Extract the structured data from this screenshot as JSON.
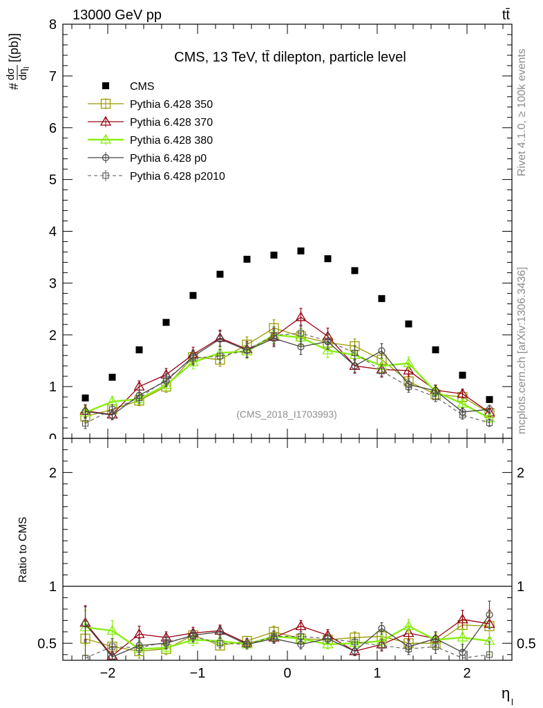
{
  "header": {
    "left": "13000 GeV pp",
    "right": "tt̄"
  },
  "title": "CMS, 13 TeV, tt̄ dilepton, particle level",
  "ylabel_main": "dσ/dη_l [(pb)]",
  "ylabel_main_hash": "#",
  "ylabel_main_num": "dσ",
  "ylabel_main_den": "dη",
  "ylabel_main_sub": "l",
  "ylabel_main_unit": "[(pb)]",
  "ylabel_ratio": "Ratio to CMS",
  "xlabel": "η",
  "xlabel_sub": "l",
  "analysis_id": "(CMS_2018_I1703993)",
  "side_text_top": "Rivet 4.1.0, ≥ 100k events",
  "side_text_bottom": "mcplots.cern.ch [arXiv:1306.3436]",
  "colors": {
    "data": "#000000",
    "p350": "#999900",
    "p370": "#990011",
    "p380": "#88ee11",
    "p0": "#444444",
    "p2010": "#555555"
  },
  "chart_data": {
    "type": "scatter",
    "x": [
      -2.25,
      -1.95,
      -1.65,
      -1.35,
      -1.05,
      -0.75,
      -0.45,
      -0.15,
      0.15,
      0.45,
      0.75,
      1.05,
      1.35,
      1.65,
      1.95,
      2.25
    ],
    "xlim": [
      -2.5,
      2.5
    ],
    "xticks": [
      -2,
      -1,
      0,
      1,
      2
    ],
    "xtick_labels": [
      "−2",
      "−1",
      "0",
      "1",
      "2"
    ],
    "main": {
      "ylim": [
        0,
        8
      ],
      "yticks": [
        0,
        1,
        2,
        3,
        4,
        5,
        6,
        7,
        8
      ],
      "ytick_labels": [
        "0",
        "1",
        "2",
        "3",
        "4",
        "5",
        "6",
        "7",
        "8"
      ]
    },
    "ratio": {
      "ylim": [
        0.35,
        2.3
      ],
      "yticks": [
        0.5,
        1,
        2
      ],
      "ytick_labels": [
        "0.5",
        "1",
        "2"
      ]
    },
    "legend_position": "top-left",
    "series": [
      {
        "name": "CMS",
        "key": "data",
        "marker": "filled-square",
        "line": "none",
        "values": [
          0.78,
          1.18,
          1.71,
          2.24,
          2.76,
          3.17,
          3.46,
          3.54,
          3.62,
          3.47,
          3.24,
          2.7,
          2.21,
          1.71,
          1.22,
          0.75
        ]
      },
      {
        "name": "Pythia 6.428 350",
        "key": "p350",
        "marker": "open-square",
        "line": "solid",
        "values": [
          0.42,
          0.56,
          0.73,
          1.0,
          1.57,
          1.52,
          1.81,
          2.13,
          1.97,
          1.85,
          1.78,
          1.52,
          1.1,
          0.85,
          0.8,
          0.49
        ],
        "errors": [
          0.12,
          0.09,
          0.1,
          0.11,
          0.13,
          0.13,
          0.15,
          0.16,
          0.16,
          0.15,
          0.14,
          0.13,
          0.12,
          0.1,
          0.09,
          0.08
        ],
        "ratio": [
          0.54,
          0.47,
          0.43,
          0.45,
          0.57,
          0.48,
          0.52,
          0.6,
          0.54,
          0.53,
          0.55,
          0.56,
          0.5,
          0.5,
          0.66,
          0.65
        ],
        "ratio_err": [
          0.15,
          0.07,
          0.06,
          0.05,
          0.05,
          0.04,
          0.04,
          0.05,
          0.04,
          0.04,
          0.05,
          0.05,
          0.06,
          0.06,
          0.07,
          0.11
        ]
      },
      {
        "name": "Pythia 6.428 370",
        "key": "p370",
        "marker": "open-triangle",
        "line": "solid",
        "values": [
          0.53,
          0.46,
          1.0,
          1.23,
          1.62,
          1.94,
          1.72,
          1.96,
          2.34,
          1.97,
          1.4,
          1.33,
          1.31,
          0.93,
          0.86,
          0.5
        ],
        "errors": [
          0.12,
          0.09,
          0.11,
          0.12,
          0.14,
          0.15,
          0.15,
          0.16,
          0.17,
          0.16,
          0.14,
          0.13,
          0.12,
          0.1,
          0.09,
          0.08
        ],
        "ratio": [
          0.68,
          0.39,
          0.58,
          0.55,
          0.59,
          0.61,
          0.5,
          0.55,
          0.65,
          0.57,
          0.43,
          0.49,
          0.59,
          0.54,
          0.71,
          0.67
        ],
        "ratio_err": [
          0.15,
          0.08,
          0.07,
          0.05,
          0.05,
          0.05,
          0.04,
          0.05,
          0.05,
          0.05,
          0.04,
          0.05,
          0.06,
          0.06,
          0.08,
          0.12
        ]
      },
      {
        "name": "Pythia 6.428 380",
        "key": "p380",
        "marker": "open-triangle",
        "line": "solid-thick",
        "values": [
          0.5,
          0.71,
          0.76,
          1.03,
          1.47,
          1.65,
          1.68,
          2.0,
          1.95,
          1.7,
          1.61,
          1.4,
          1.45,
          0.9,
          0.67,
          0.39
        ],
        "errors": [
          0.12,
          0.1,
          0.1,
          0.11,
          0.13,
          0.14,
          0.14,
          0.16,
          0.16,
          0.14,
          0.14,
          0.13,
          0.12,
          0.1,
          0.09,
          0.08
        ],
        "ratio": [
          0.64,
          0.61,
          0.45,
          0.46,
          0.53,
          0.52,
          0.49,
          0.56,
          0.54,
          0.49,
          0.5,
          0.52,
          0.65,
          0.53,
          0.55,
          0.52
        ],
        "ratio_err": [
          0.15,
          0.09,
          0.06,
          0.05,
          0.05,
          0.04,
          0.04,
          0.05,
          0.04,
          0.04,
          0.04,
          0.05,
          0.06,
          0.06,
          0.08,
          0.12
        ]
      },
      {
        "name": "Pythia 6.428 p0",
        "key": "p0",
        "marker": "open-circle",
        "line": "solid",
        "values": [
          0.52,
          0.45,
          0.83,
          1.11,
          1.58,
          1.92,
          1.7,
          1.93,
          1.77,
          1.87,
          1.4,
          1.69,
          1.04,
          0.92,
          0.51,
          0.56
        ],
        "errors": [
          0.12,
          0.09,
          0.1,
          0.11,
          0.13,
          0.15,
          0.14,
          0.16,
          0.15,
          0.15,
          0.13,
          0.14,
          0.11,
          0.1,
          0.08,
          0.08
        ],
        "ratio": [
          0.67,
          0.38,
          0.48,
          0.5,
          0.57,
          0.6,
          0.49,
          0.54,
          0.49,
          0.54,
          0.43,
          0.63,
          0.47,
          0.54,
          0.42,
          0.75
        ],
        "ratio_err": [
          0.15,
          0.08,
          0.06,
          0.05,
          0.05,
          0.05,
          0.04,
          0.04,
          0.04,
          0.04,
          0.04,
          0.05,
          0.05,
          0.06,
          0.07,
          0.12
        ]
      },
      {
        "name": "Pythia 6.428 p2010",
        "key": "p2010",
        "marker": "open-square-small",
        "line": "dashed",
        "values": [
          0.29,
          0.56,
          0.78,
          1.14,
          1.55,
          1.59,
          1.7,
          1.99,
          2.03,
          1.88,
          1.65,
          1.3,
          1.0,
          0.8,
          0.45,
          0.3
        ],
        "errors": [
          0.1,
          0.09,
          0.1,
          0.11,
          0.13,
          0.13,
          0.14,
          0.16,
          0.16,
          0.15,
          0.14,
          0.12,
          0.11,
          0.09,
          0.08,
          0.07
        ],
        "ratio": [
          0.37,
          0.47,
          0.46,
          0.51,
          0.56,
          0.5,
          0.49,
          0.56,
          0.56,
          0.54,
          0.51,
          0.48,
          0.45,
          0.47,
          0.37,
          0.4
        ],
        "ratio_err": [
          0.14,
          0.07,
          0.06,
          0.05,
          0.05,
          0.04,
          0.04,
          0.05,
          0.04,
          0.04,
          0.04,
          0.05,
          0.05,
          0.06,
          0.07,
          0.11
        ]
      }
    ]
  }
}
